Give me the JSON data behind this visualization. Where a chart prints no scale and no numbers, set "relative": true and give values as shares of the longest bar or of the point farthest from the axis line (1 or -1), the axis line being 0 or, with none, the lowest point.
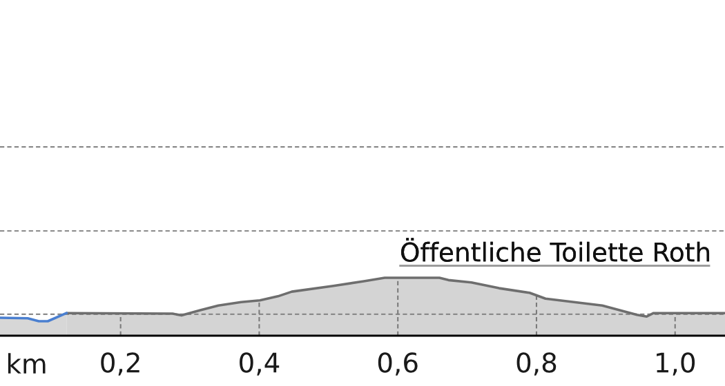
{
  "chart_data": {
    "type": "area",
    "relative": true,
    "xlabel": "km",
    "xlim": [
      0.026,
      1.072
    ],
    "xticks": [
      {
        "value": 0.2,
        "label": "0,2"
      },
      {
        "value": 0.4,
        "label": "0,4"
      },
      {
        "value": 0.6,
        "label": "0,6"
      },
      {
        "value": 0.8,
        "label": "0,8"
      },
      {
        "value": 1.0,
        "label": "1,0"
      }
    ],
    "grid": "x",
    "tick_labels": "x",
    "series": [
      {
        "color": "#6e6e6e",
        "x": [
          0.122,
          0.275,
          0.288,
          0.315,
          0.341,
          0.374,
          0.401,
          0.427,
          0.447,
          0.507,
          0.551,
          0.581,
          0.66,
          0.673,
          0.706,
          0.746,
          0.79,
          0.813,
          0.895,
          0.945,
          0.959,
          0.969,
          1.072
        ],
        "values": [
          0.39,
          0.38,
          0.35,
          0.44,
          0.52,
          0.58,
          0.61,
          0.68,
          0.76,
          0.86,
          0.94,
          1.0,
          1.0,
          0.96,
          0.92,
          0.82,
          0.74,
          0.64,
          0.52,
          0.36,
          0.33,
          0.39,
          0.39
        ]
      },
      {
        "type": "area",
        "color": "#4a7fd0",
        "x": [
          0.026,
          0.066,
          0.082,
          0.095,
          0.122
        ],
        "values": [
          0.31,
          0.3,
          0.25,
          0.25,
          0.39
        ]
      }
    ],
    "ref_lines": [
      {
        "axis": "y",
        "value": 0.37,
        "color": "#8a8a8a",
        "line_style": "dashed"
      },
      {
        "axis": "y",
        "value": 1.81,
        "color": "#8a8a8a",
        "line_style": "dashed"
      },
      {
        "axis": "y",
        "value": 3.26,
        "color": "#8a8a8a",
        "line_style": "dashed"
      }
    ],
    "annotations": [
      {
        "text": "Öffentliche Toilette Roth",
        "x": 0.6,
        "y": 1.0
      }
    ]
  }
}
